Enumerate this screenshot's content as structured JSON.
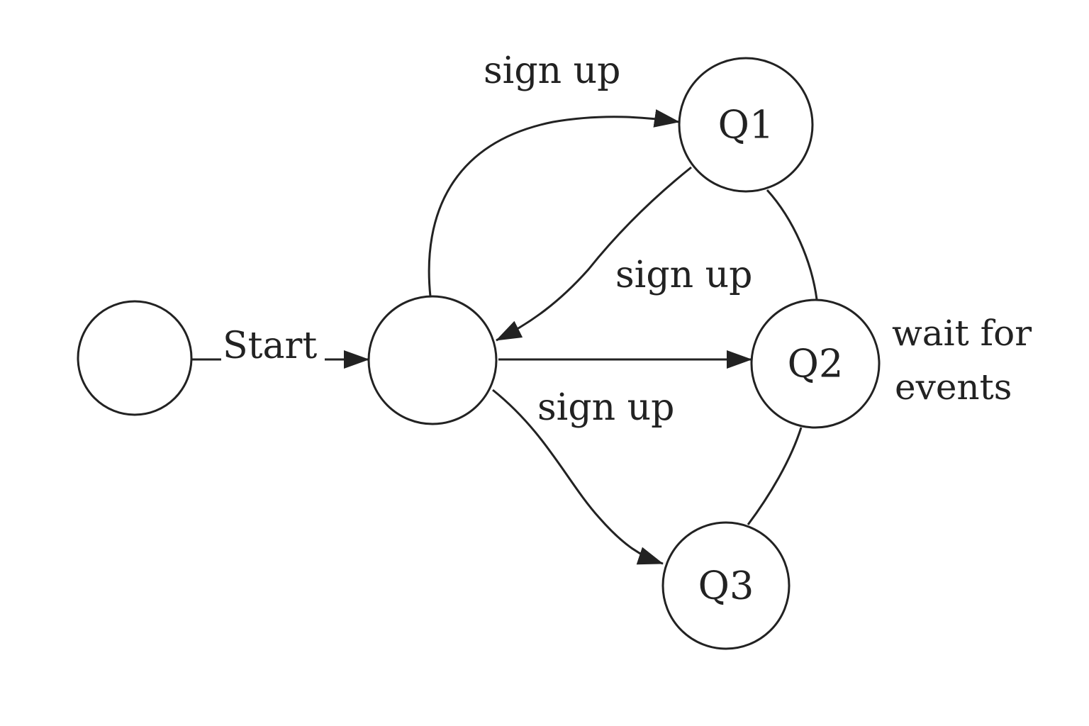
{
  "diagram": {
    "type": "state-machine",
    "states": {
      "s0": {
        "label": ""
      },
      "hub": {
        "label": ""
      },
      "q1": {
        "label": "Q1"
      },
      "q2": {
        "label": "Q2"
      },
      "q3": {
        "label": "Q3"
      }
    },
    "edges": {
      "s0_hub": {
        "from": "s0",
        "to": "hub",
        "label": "Start"
      },
      "hub_q1": {
        "from": "hub",
        "to": "q1",
        "label": "sign up"
      },
      "q1_hub": {
        "from": "q1",
        "to": "hub",
        "label": "sign up"
      },
      "hub_q2": {
        "from": "hub",
        "to": "q2",
        "label": ""
      },
      "hub_q3": {
        "from": "hub",
        "to": "q3",
        "label": "sign up"
      },
      "q1_q2": {
        "from": "q1",
        "to": "q2",
        "label": ""
      },
      "q2_q3": {
        "from": "q2",
        "to": "q3",
        "label": ""
      }
    },
    "notes": {
      "q2_note": {
        "line1": "wait for",
        "line2": "events"
      }
    }
  }
}
